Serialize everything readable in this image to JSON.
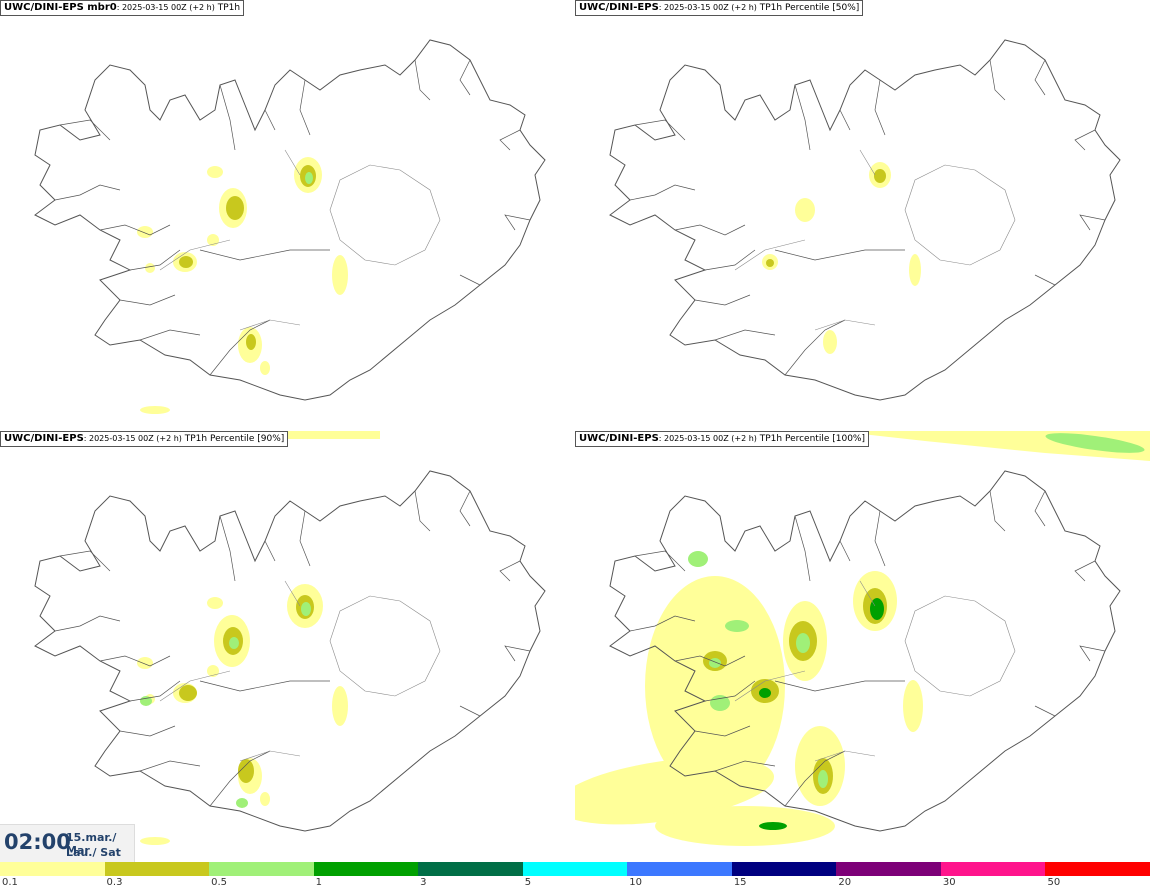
{
  "panels": [
    {
      "model": "UWC/DINI-EPS mbr0",
      "run": ": 2025-03-15 00Z (+2 h)",
      "product": " TP1h"
    },
    {
      "model": "UWC/DINI-EPS",
      "run": ": 2025-03-15 00Z (+2 h)",
      "product": " TP1h Percentile [50%]"
    },
    {
      "model": "UWC/DINI-EPS",
      "run": ": 2025-03-15 00Z (+2 h)",
      "product": " TP1h Percentile [90%]"
    },
    {
      "model": "UWC/DINI-EPS",
      "run": ": 2025-03-15 00Z (+2 h)",
      "product": " TP1h Percentile [100%]"
    }
  ],
  "time": {
    "clock": "02:00",
    "date_line1": "15.mar./ Mar",
    "date_line2": "Lau./ Sat"
  },
  "legend": {
    "colors": [
      "#ffff99",
      "#c8c81e",
      "#a0f078",
      "#00a000",
      "#006e46",
      "#00ffff",
      "#3c78ff",
      "#000080",
      "#7d0078",
      "#ff148c",
      "#ff0000"
    ],
    "labels": [
      "0.1",
      "0.3",
      "0.5",
      "1",
      "3",
      "5",
      "10",
      "15",
      "20",
      "30",
      "50"
    ]
  },
  "colors": {
    "light_yellow": "#ffff99",
    "olive": "#c8c81e",
    "light_green": "#a0f078",
    "green": "#00a000",
    "coast": "#555555"
  }
}
